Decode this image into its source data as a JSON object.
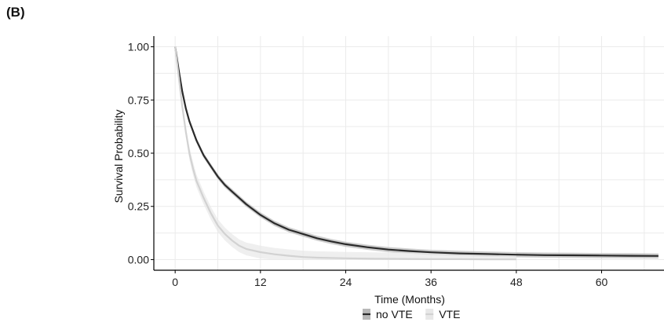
{
  "panel_label": "(B)",
  "chart_data": {
    "type": "line",
    "title": "",
    "xlabel": "Time (Months)",
    "ylabel": "Survival Probability",
    "xlim": [
      -3,
      69
    ],
    "ylim": [
      -0.05,
      1.05
    ],
    "x_ticks": [
      0,
      12,
      24,
      36,
      48,
      60
    ],
    "y_ticks": [
      0.0,
      0.25,
      0.5,
      0.75,
      1.0
    ],
    "x_tick_labels": [
      "0",
      "12",
      "24",
      "36",
      "48",
      "60"
    ],
    "y_tick_labels": [
      "0.00",
      "0.25",
      "0.50",
      "0.75",
      "1.00"
    ],
    "grid": true,
    "legend_position": "bottom",
    "series": [
      {
        "name": "no VTE",
        "color": "#2a2a2a",
        "band_color": "#b8b8b8",
        "x": [
          0,
          0.5,
          1,
          1.5,
          2,
          3,
          4,
          5,
          6,
          7,
          8,
          9,
          10,
          12,
          14,
          16,
          18,
          20,
          22,
          24,
          27,
          30,
          33,
          36,
          40,
          44,
          48,
          52,
          56,
          60,
          64,
          68
        ],
        "y": [
          1.0,
          0.89,
          0.79,
          0.71,
          0.65,
          0.56,
          0.49,
          0.44,
          0.39,
          0.35,
          0.32,
          0.29,
          0.26,
          0.21,
          0.17,
          0.14,
          0.12,
          0.1,
          0.085,
          0.072,
          0.058,
          0.047,
          0.04,
          0.034,
          0.029,
          0.026,
          0.023,
          0.021,
          0.02,
          0.019,
          0.018,
          0.017
        ]
      },
      {
        "name": "VTE",
        "color": "#d2d2d2",
        "band_color": "#e8e8e8",
        "x": [
          0,
          0.5,
          1,
          1.5,
          2,
          2.5,
          3,
          4,
          5,
          6,
          7,
          8,
          9,
          10,
          12,
          14,
          16,
          18,
          20,
          24,
          28,
          32,
          36,
          40,
          44,
          48
        ],
        "y": [
          1.0,
          0.86,
          0.72,
          0.6,
          0.5,
          0.43,
          0.37,
          0.29,
          0.22,
          0.16,
          0.12,
          0.09,
          0.065,
          0.05,
          0.035,
          0.025,
          0.018,
          0.012,
          0.009,
          0.006,
          0.004,
          0.003,
          0.002,
          0.002,
          0.001,
          0.001
        ]
      }
    ]
  }
}
